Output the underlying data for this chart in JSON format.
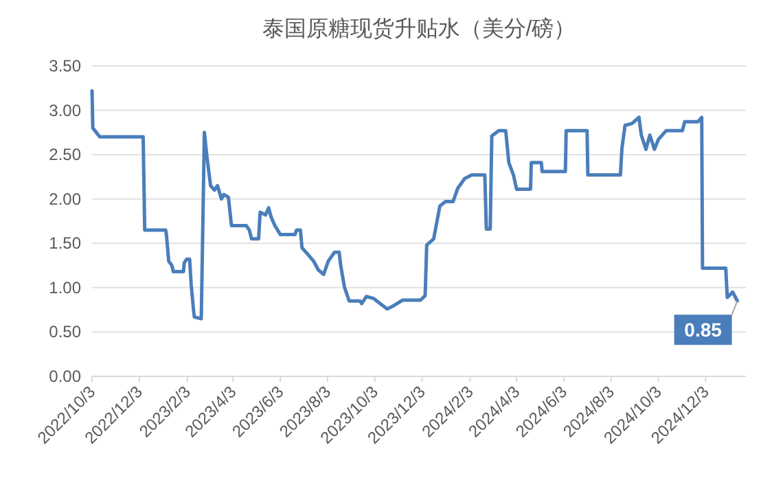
{
  "chart_data": {
    "type": "line",
    "title": "泰国原糖现货升贴水（美分/磅）",
    "x": [
      "2022-10-03",
      "2022-10-04",
      "2022-10-13",
      "2022-12-08",
      "2022-12-10",
      "2023-01-06",
      "2023-01-07",
      "2023-01-10",
      "2023-01-14",
      "2023-01-16",
      "2023-01-29",
      "2023-01-30",
      "2023-02-02",
      "2023-02-06",
      "2023-02-08",
      "2023-02-11",
      "2023-02-12",
      "2023-02-21",
      "2023-02-25",
      "2023-02-28",
      "2023-03-05",
      "2023-03-10",
      "2023-03-14",
      "2023-03-19",
      "2023-03-22",
      "2023-03-28",
      "2023-04-01",
      "2023-04-20",
      "2023-04-24",
      "2023-04-27",
      "2023-05-06",
      "2023-05-08",
      "2023-05-15",
      "2023-05-19",
      "2023-05-22",
      "2023-05-27",
      "2023-06-03",
      "2023-06-22",
      "2023-06-24",
      "2023-06-29",
      "2023-07-01",
      "2023-07-06",
      "2023-07-16",
      "2023-07-22",
      "2023-07-29",
      "2023-08-04",
      "2023-08-12",
      "2023-08-18",
      "2023-08-20",
      "2023-08-25",
      "2023-08-31",
      "2023-09-14",
      "2023-09-16",
      "2023-09-22",
      "2023-10-01",
      "2023-10-13",
      "2023-10-19",
      "2023-10-28",
      "2023-11-08",
      "2023-12-01",
      "2023-12-07",
      "2023-12-09",
      "2023-12-18",
      "2023-12-26",
      "2024-01-02",
      "2024-01-12",
      "2024-01-18",
      "2024-01-27",
      "2024-02-05",
      "2024-02-22",
      "2024-02-24",
      "2024-02-29",
      "2024-03-02",
      "2024-03-11",
      "2024-03-20",
      "2024-03-24",
      "2024-03-30",
      "2024-04-03",
      "2024-04-21",
      "2024-04-22",
      "2024-05-05",
      "2024-05-06",
      "2024-06-05",
      "2024-06-06",
      "2024-07-03",
      "2024-07-04",
      "2024-08-15",
      "2024-08-17",
      "2024-08-21",
      "2024-08-30",
      "2024-09-08",
      "2024-09-11",
      "2024-09-17",
      "2024-09-22",
      "2024-09-28",
      "2024-10-03",
      "2024-10-13",
      "2024-11-03",
      "2024-11-06",
      "2024-11-23",
      "2024-11-28",
      "2024-11-29",
      "2024-12-29",
      "2024-12-31",
      "2025-01-07",
      "2025-01-13"
    ],
    "series": [
      {
        "color": "#4a7ebb",
        "values": [
          3.22,
          2.8,
          2.7,
          2.7,
          1.65,
          1.65,
          1.6,
          1.3,
          1.25,
          1.18,
          1.18,
          1.28,
          1.32,
          1.32,
          1.03,
          0.75,
          0.67,
          0.65,
          2.75,
          2.5,
          2.15,
          2.1,
          2.15,
          2.0,
          2.05,
          2.02,
          1.7,
          1.7,
          1.65,
          1.55,
          1.55,
          1.85,
          1.82,
          1.9,
          1.8,
          1.7,
          1.6,
          1.6,
          1.65,
          1.65,
          1.45,
          1.4,
          1.3,
          1.2,
          1.15,
          1.3,
          1.4,
          1.4,
          1.25,
          1.0,
          0.85,
          0.85,
          0.82,
          0.9,
          0.88,
          0.8,
          0.76,
          0.8,
          0.86,
          0.86,
          0.91,
          1.48,
          1.55,
          1.92,
          1.97,
          1.97,
          2.12,
          2.23,
          2.27,
          2.27,
          1.66,
          1.66,
          2.71,
          2.77,
          2.77,
          2.41,
          2.27,
          2.11,
          2.11,
          2.41,
          2.41,
          2.31,
          2.31,
          2.77,
          2.77,
          2.27,
          2.27,
          2.57,
          2.83,
          2.85,
          2.92,
          2.72,
          2.56,
          2.72,
          2.56,
          2.67,
          2.77,
          2.77,
          2.87,
          2.87,
          2.92,
          1.22,
          1.22,
          0.89,
          0.95,
          0.85
        ],
        "value_labels": [
          null,
          null,
          null,
          null,
          null,
          null,
          null,
          null,
          null,
          null,
          null,
          null,
          null,
          null,
          null,
          null,
          null,
          null,
          null,
          null,
          null,
          null,
          null,
          null,
          null,
          null,
          null,
          null,
          null,
          null,
          null,
          null,
          null,
          null,
          null,
          null,
          null,
          null,
          null,
          null,
          null,
          null,
          null,
          null,
          null,
          null,
          null,
          null,
          null,
          null,
          null,
          null,
          null,
          null,
          null,
          null,
          null,
          null,
          null,
          null,
          null,
          null,
          null,
          null,
          null,
          null,
          null,
          null,
          null,
          null,
          null,
          null,
          null,
          null,
          null,
          null,
          null,
          null,
          null,
          null,
          null,
          null,
          null,
          null,
          null,
          null,
          null,
          null,
          null,
          null,
          null,
          null,
          null,
          null,
          null,
          null,
          null,
          null,
          null,
          null,
          null,
          null,
          null,
          null,
          null,
          "0.85"
        ]
      }
    ],
    "xlim": [
      "2022-10-03",
      "2025-01-24"
    ],
    "xticks": [
      {
        "value": "2022-10-03",
        "label": "2022/10/3"
      },
      {
        "value": "2022-12-03",
        "label": "2022/12/3"
      },
      {
        "value": "2023-02-03",
        "label": "2023/2/3"
      },
      {
        "value": "2023-04-03",
        "label": "2023/4/3"
      },
      {
        "value": "2023-06-03",
        "label": "2023/6/3"
      },
      {
        "value": "2023-08-03",
        "label": "2023/8/3"
      },
      {
        "value": "2023-10-03",
        "label": "2023/10/3"
      },
      {
        "value": "2023-12-03",
        "label": "2023/12/3"
      },
      {
        "value": "2024-02-03",
        "label": "2024/2/3"
      },
      {
        "value": "2024-04-03",
        "label": "2024/4/3"
      },
      {
        "value": "2024-06-03",
        "label": "2024/6/3"
      },
      {
        "value": "2024-08-03",
        "label": "2024/8/3"
      },
      {
        "value": "2024-10-03",
        "label": "2024/10/3"
      },
      {
        "value": "2024-12-03",
        "label": "2024/12/3"
      }
    ],
    "ylim": [
      0,
      3.5
    ],
    "yticks": [
      {
        "value": 0,
        "label": "0.00"
      },
      {
        "value": 0.5,
        "label": "0.50"
      },
      {
        "value": 1,
        "label": "1.00"
      },
      {
        "value": 1.5,
        "label": "1.50"
      },
      {
        "value": 2,
        "label": "2.00"
      },
      {
        "value": 2.5,
        "label": "2.50"
      },
      {
        "value": 3,
        "label": "3.00"
      },
      {
        "value": 3.5,
        "label": "3.50"
      }
    ],
    "grid": "y",
    "marker": "none",
    "line_style": "solid"
  }
}
